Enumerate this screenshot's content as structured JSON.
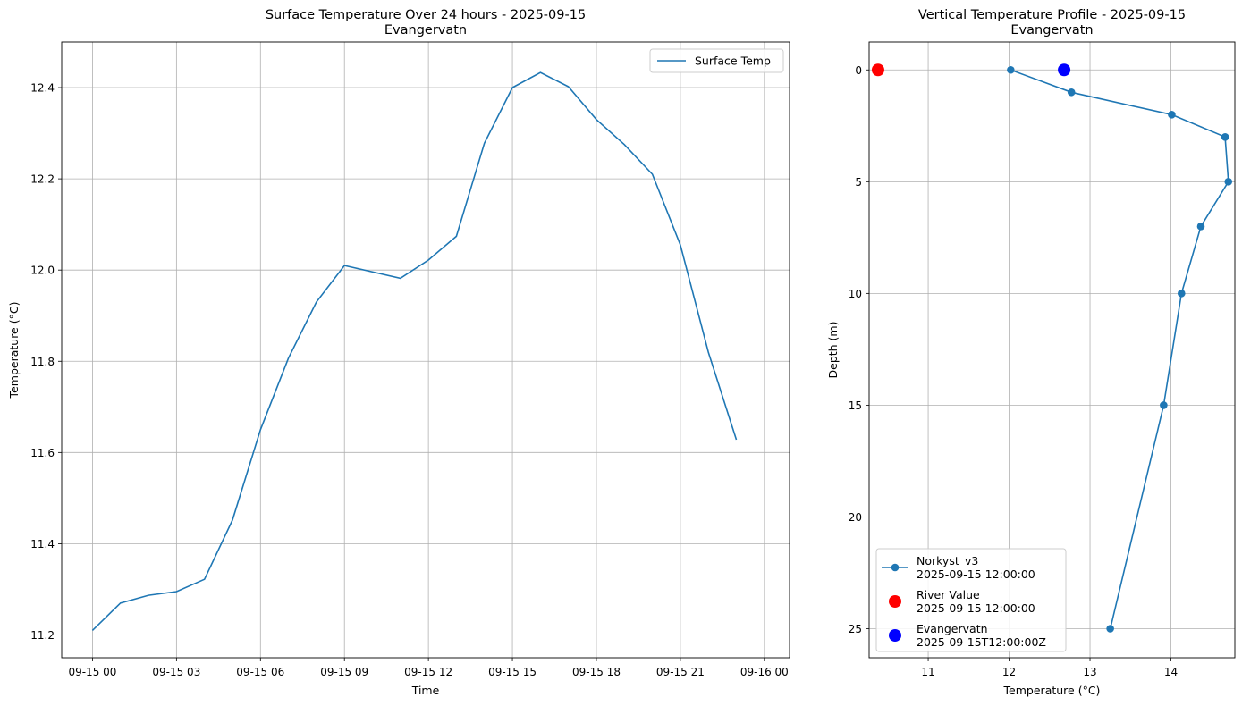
{
  "chart_data": [
    {
      "type": "line",
      "title": "Surface Temperature Over 24 hours - 2025-09-15",
      "subtitle": "Evangervatn",
      "xlabel": "Time",
      "ylabel": "Temperature (°C)",
      "x_tick_labels": [
        "09-15 00",
        "09-15 03",
        "09-15 06",
        "09-15 09",
        "09-15 12",
        "09-15 15",
        "09-15 18",
        "09-15 21",
        "09-16 00"
      ],
      "y_tick_labels": [
        "11.2",
        "11.4",
        "11.6",
        "11.8",
        "12.0",
        "12.2",
        "12.4"
      ],
      "ylim": [
        11.15,
        12.5
      ],
      "xlim_hours": [
        -1.1,
        24.9
      ],
      "grid": true,
      "legend_position": "upper right",
      "series": [
        {
          "name": "Surface Temp",
          "color": "#1f77b4",
          "x_hours": [
            0,
            1,
            2,
            3,
            4,
            5,
            6,
            7,
            8,
            9,
            11,
            12,
            13,
            14,
            15,
            16,
            17,
            18,
            19,
            20,
            21,
            22,
            23
          ],
          "values": [
            11.21,
            11.27,
            11.287,
            11.295,
            11.322,
            11.452,
            11.65,
            11.807,
            11.93,
            12.01,
            11.982,
            12.022,
            12.074,
            12.278,
            12.4,
            12.433,
            12.402,
            12.33,
            12.275,
            12.21,
            12.055,
            11.82,
            11.628
          ]
        }
      ]
    },
    {
      "type": "line",
      "title": "Vertical Temperature Profile - 2025-09-15",
      "subtitle": "Evangervatn",
      "xlabel": "Temperature (°C)",
      "ylabel": "Depth (m)",
      "x_tick_labels": [
        "11",
        "12",
        "13",
        "14"
      ],
      "y_tick_labels": [
        "0",
        "5",
        "10",
        "15",
        "20",
        "25"
      ],
      "xlim": [
        10.27,
        14.79
      ],
      "ylim": [
        26.3,
        -1.25
      ],
      "y_inverted": true,
      "grid": true,
      "legend_position": "lower left",
      "series": [
        {
          "name": "Norkyst_v3\n2025-09-15 12:00:00",
          "color": "#1f77b4",
          "marker": "circle",
          "x": [
            12.02,
            12.77,
            14.01,
            14.67,
            14.71,
            14.37,
            14.13,
            13.91,
            13.25
          ],
          "depth": [
            0,
            1,
            2,
            3,
            5,
            7,
            10,
            15,
            25
          ]
        },
        {
          "name": "River Value\n2025-09-15 12:00:00",
          "color": "#ff0000",
          "marker": "circle",
          "x": [
            10.38
          ],
          "depth": [
            0
          ]
        },
        {
          "name": "Evangervatn\n2025-09-15T12:00:00Z",
          "color": "#0000ff",
          "marker": "circle",
          "x": [
            12.68
          ],
          "depth": [
            0
          ]
        }
      ]
    }
  ]
}
